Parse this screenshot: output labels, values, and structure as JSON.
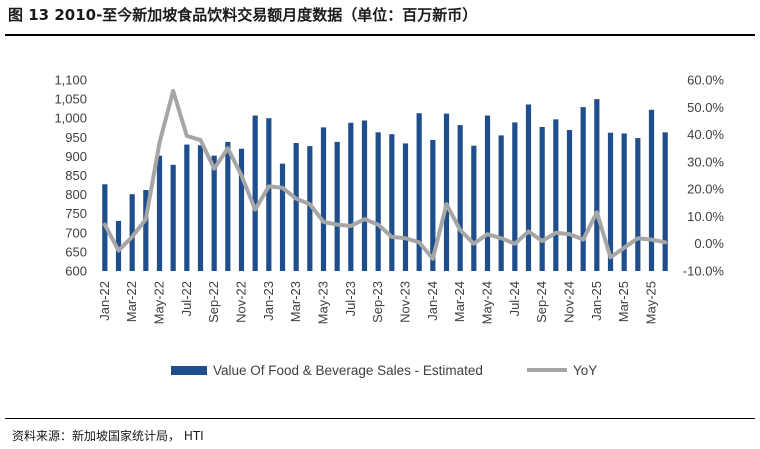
{
  "title": "图 13 2010-至今新加坡食品饮料交易额月度数据（单位：百万新币）",
  "source": "资料来源：新加坡国家统计局， HTI",
  "chart_data": {
    "type": "bar",
    "categories": [
      "Jan-22",
      "Feb-22",
      "Mar-22",
      "Apr-22",
      "May-22",
      "Jun-22",
      "Jul-22",
      "Aug-22",
      "Sep-22",
      "Oct-22",
      "Nov-22",
      "Dec-22",
      "Jan-23",
      "Feb-23",
      "Mar-23",
      "Apr-23",
      "May-23",
      "Jun-23",
      "Jul-23",
      "Aug-23",
      "Sep-23",
      "Oct-23",
      "Nov-23",
      "Dec-23",
      "Jan-24",
      "Feb-24",
      "Mar-24",
      "Apr-24",
      "May-24",
      "Jun-24",
      "Jul-24",
      "Aug-24",
      "Sep-24",
      "Oct-24",
      "Nov-24",
      "Dec-24",
      "Jan-25",
      "Feb-25",
      "Mar-25",
      "Apr-25",
      "May-25",
      "Jun-25"
    ],
    "x_tick_labels": [
      "Jan-22",
      "Mar-22",
      "May-22",
      "Jul-22",
      "Sep-22",
      "Nov-22",
      "Jan-23",
      "Mar-23",
      "May-23",
      "Jul-23",
      "Sep-23",
      "Nov-23",
      "Jan-24",
      "Mar-24",
      "May-24",
      "Jul-24",
      "Sep-24",
      "Nov-24",
      "Jan-25",
      "Mar-25",
      "May-25"
    ],
    "series": [
      {
        "name": "Value Of Food & Beverage Sales - Estimated",
        "type": "bar",
        "axis": "left",
        "color": "#1f4e8c",
        "values": [
          827,
          731,
          801,
          812,
          902,
          878,
          931,
          929,
          902,
          938,
          920,
          1007,
          1000,
          881,
          935,
          927,
          976,
          938,
          988,
          994,
          963,
          958,
          934,
          1013,
          943,
          1012,
          982,
          928,
          1007,
          955,
          989,
          1036,
          977,
          997,
          969,
          1029,
          1050,
          962,
          960,
          948,
          1022,
          963
        ]
      },
      {
        "name": "YoY",
        "type": "line",
        "axis": "right",
        "color": "#a6a6a6",
        "values": [
          7.0,
          -2.5,
          2.5,
          9.0,
          37.0,
          56.0,
          39.5,
          38.0,
          27.5,
          35.0,
          25.0,
          12.5,
          21.0,
          20.5,
          16.5,
          14.5,
          8.0,
          7.0,
          6.5,
          9.0,
          7.0,
          2.5,
          2.0,
          0.5,
          -5.5,
          14.5,
          5.0,
          0.0,
          3.5,
          2.0,
          0.0,
          4.5,
          1.0,
          4.0,
          3.5,
          1.5,
          11.5,
          -5.0,
          -1.5,
          2.0,
          1.5,
          0.5
        ]
      }
    ],
    "y_left": {
      "min": 600,
      "max": 1100,
      "step": 50,
      "tick_labels": [
        "1,100",
        "1,050",
        "1,000",
        "950",
        "900",
        "850",
        "800",
        "750",
        "700",
        "650",
        "600"
      ]
    },
    "y_right": {
      "min": -10,
      "max": 60,
      "step": 10,
      "tick_labels": [
        "60.0%",
        "50.0%",
        "40.0%",
        "30.0%",
        "20.0%",
        "10.0%",
        "0.0%",
        "-10.0%"
      ]
    },
    "grid": false,
    "legend_position": "bottom"
  }
}
